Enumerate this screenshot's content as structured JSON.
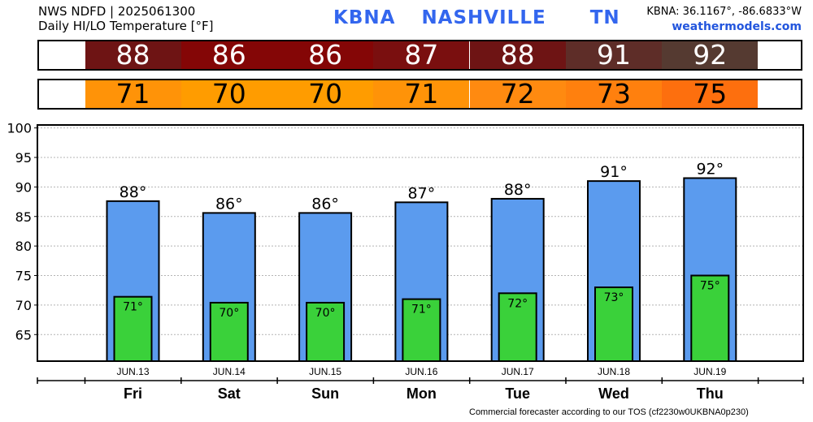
{
  "header": {
    "line1": "NWS NDFD | 2025061300",
    "line2": "Daily HI/LO Temperature [°F]",
    "station": "KBNA",
    "city": "NASHVILLE",
    "state": "TN",
    "coords": "KBNA: 36.1167°, -86.6833°W",
    "site": "weathermodels.com"
  },
  "footer": "Commercial forecaster according to our TOS (cf2230w0UKBNA0p230)",
  "colors": {
    "hi_bar": "#5b9bee",
    "lo_bar": "#3ad13a",
    "hi_cells": [
      "#6e1414",
      "#840606",
      "#840606",
      "#7a0f0f",
      "#6e1414",
      "#5e2d28",
      "#553a31"
    ],
    "lo_cells": [
      "#ff9308",
      "#ff9c00",
      "#ff9c00",
      "#ff9308",
      "#ff8a10",
      "#ff800e",
      "#fd6f0e"
    ]
  },
  "chart_data": {
    "type": "bar",
    "categories": [
      "Fri",
      "Sat",
      "Sun",
      "Mon",
      "Tue",
      "Wed",
      "Thu"
    ],
    "dates": [
      "JUN.13",
      "JUN.14",
      "JUN.15",
      "JUN.16",
      "JUN.17",
      "JUN.18",
      "JUN.19"
    ],
    "series": [
      {
        "values": [
          88,
          86,
          86,
          87,
          88,
          91,
          92
        ],
        "bar_values": [
          87.6,
          85.6,
          85.6,
          87.4,
          88.0,
          91.0,
          91.5
        ]
      },
      {
        "values": [
          71,
          70,
          70,
          71,
          72,
          73,
          75
        ],
        "bar_values": [
          71.4,
          70.4,
          70.4,
          71.0,
          72.0,
          73.0,
          75.0
        ]
      }
    ],
    "hi_labels": [
      "88°",
      "86°",
      "86°",
      "87°",
      "88°",
      "91°",
      "92°"
    ],
    "lo_labels": [
      "71°",
      "70°",
      "70°",
      "71°",
      "72°",
      "73°",
      "75°"
    ],
    "yticks": [
      65,
      70,
      75,
      80,
      85,
      90,
      95,
      100
    ],
    "ylim": [
      60.5,
      100.5
    ],
    "grid": true
  }
}
